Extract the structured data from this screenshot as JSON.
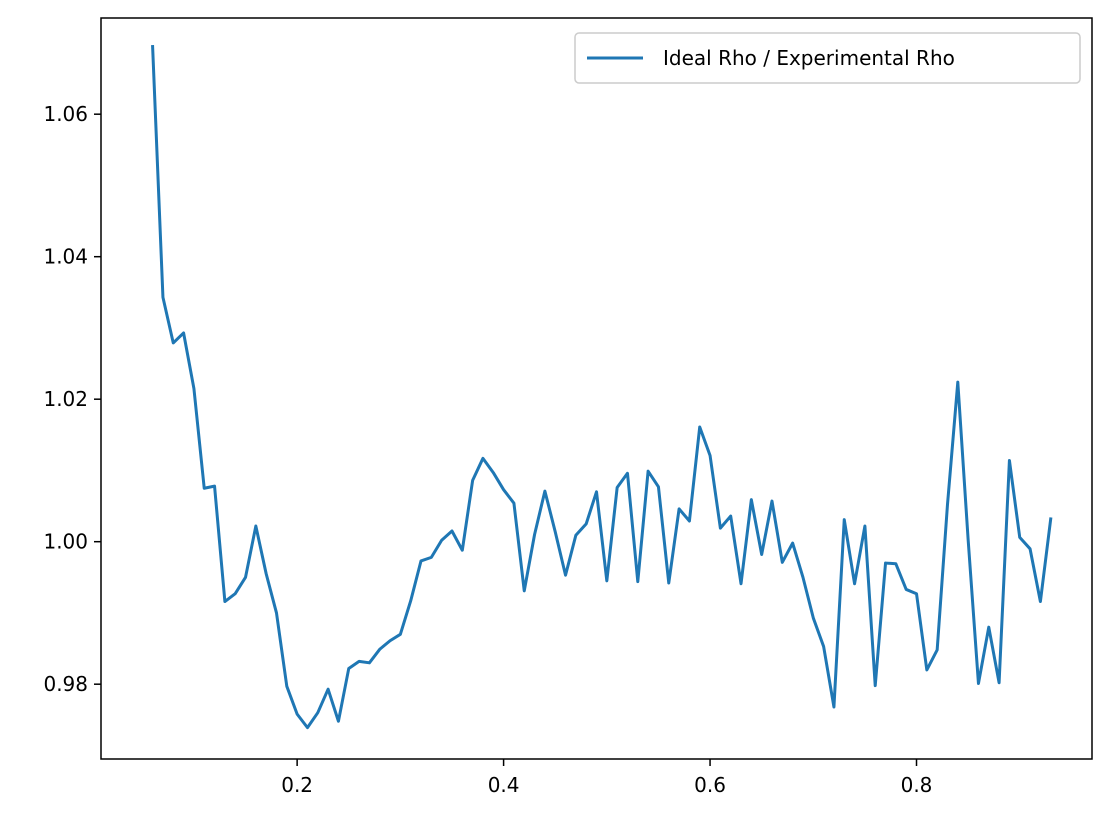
{
  "chart_data": {
    "type": "line",
    "title": "",
    "xlabel": "",
    "ylabel": "",
    "xlim": [
      0.01,
      0.97
    ],
    "ylim": [
      0.9695,
      1.0735
    ],
    "xticks": [
      0.2,
      0.4,
      0.6,
      0.8
    ],
    "yticks": [
      0.98,
      1.0,
      1.02,
      1.04,
      1.06
    ],
    "xtick_labels": [
      "0.2",
      "0.4",
      "0.6",
      "0.8"
    ],
    "ytick_labels": [
      "0.98",
      "1.00",
      "1.02",
      "1.04",
      "1.06"
    ],
    "grid": false,
    "legend_position": "top-right",
    "series": [
      {
        "name": "Ideal Rho / Experimental Rho",
        "color": "#1f77b4",
        "x": [
          0.06,
          0.07,
          0.08,
          0.09,
          0.1,
          0.11,
          0.12,
          0.13,
          0.14,
          0.15,
          0.16,
          0.17,
          0.18,
          0.19,
          0.2,
          0.21,
          0.22,
          0.23,
          0.24,
          0.25,
          0.26,
          0.27,
          0.28,
          0.29,
          0.3,
          0.31,
          0.32,
          0.33,
          0.34,
          0.35,
          0.36,
          0.37,
          0.38,
          0.39,
          0.4,
          0.41,
          0.42,
          0.43,
          0.44,
          0.45,
          0.46,
          0.47,
          0.48,
          0.49,
          0.5,
          0.51,
          0.52,
          0.53,
          0.54,
          0.55,
          0.56,
          0.57,
          0.58,
          0.59,
          0.6,
          0.61,
          0.62,
          0.63,
          0.64,
          0.65,
          0.66,
          0.67,
          0.68,
          0.69,
          0.7,
          0.71,
          0.72,
          0.73,
          0.74,
          0.75,
          0.76,
          0.77,
          0.78,
          0.79,
          0.8,
          0.81,
          0.82,
          0.83,
          0.84,
          0.85,
          0.86,
          0.87,
          0.88,
          0.89,
          0.9,
          0.91,
          0.92,
          0.93
        ],
        "y": [
          1.0695,
          1.0343,
          1.0279,
          1.0293,
          1.0215,
          1.0075,
          1.0078,
          0.9916,
          0.9927,
          0.995,
          1.0022,
          0.9955,
          0.99,
          0.9797,
          0.9758,
          0.9739,
          0.976,
          0.9793,
          0.9748,
          0.9822,
          0.9832,
          0.983,
          0.9849,
          0.9861,
          0.987,
          0.9917,
          0.9973,
          0.9978,
          1.0002,
          1.0015,
          0.9988,
          1.0086,
          1.0117,
          1.0097,
          1.0073,
          1.0054,
          0.9931,
          1.001,
          1.0071,
          1.0014,
          0.9953,
          1.0009,
          1.0025,
          1.007,
          0.9945,
          1.0076,
          1.0096,
          0.9944,
          1.0099,
          1.0077,
          0.9942,
          1.0046,
          1.0029,
          1.0161,
          1.0121,
          1.0019,
          1.0036,
          0.9941,
          1.0059,
          0.9982,
          1.0057,
          0.9971,
          0.9998,
          0.995,
          0.9893,
          0.9853,
          0.9768,
          1.0031,
          0.9941,
          1.0022,
          0.9798,
          0.997,
          0.9969,
          0.9933,
          0.9927,
          0.982,
          0.9848,
          1.0052,
          1.0224,
          1.0003,
          0.9801,
          0.988,
          0.9802,
          1.0114,
          1.0006,
          0.999,
          0.9916,
          1.0032
        ]
      }
    ]
  }
}
